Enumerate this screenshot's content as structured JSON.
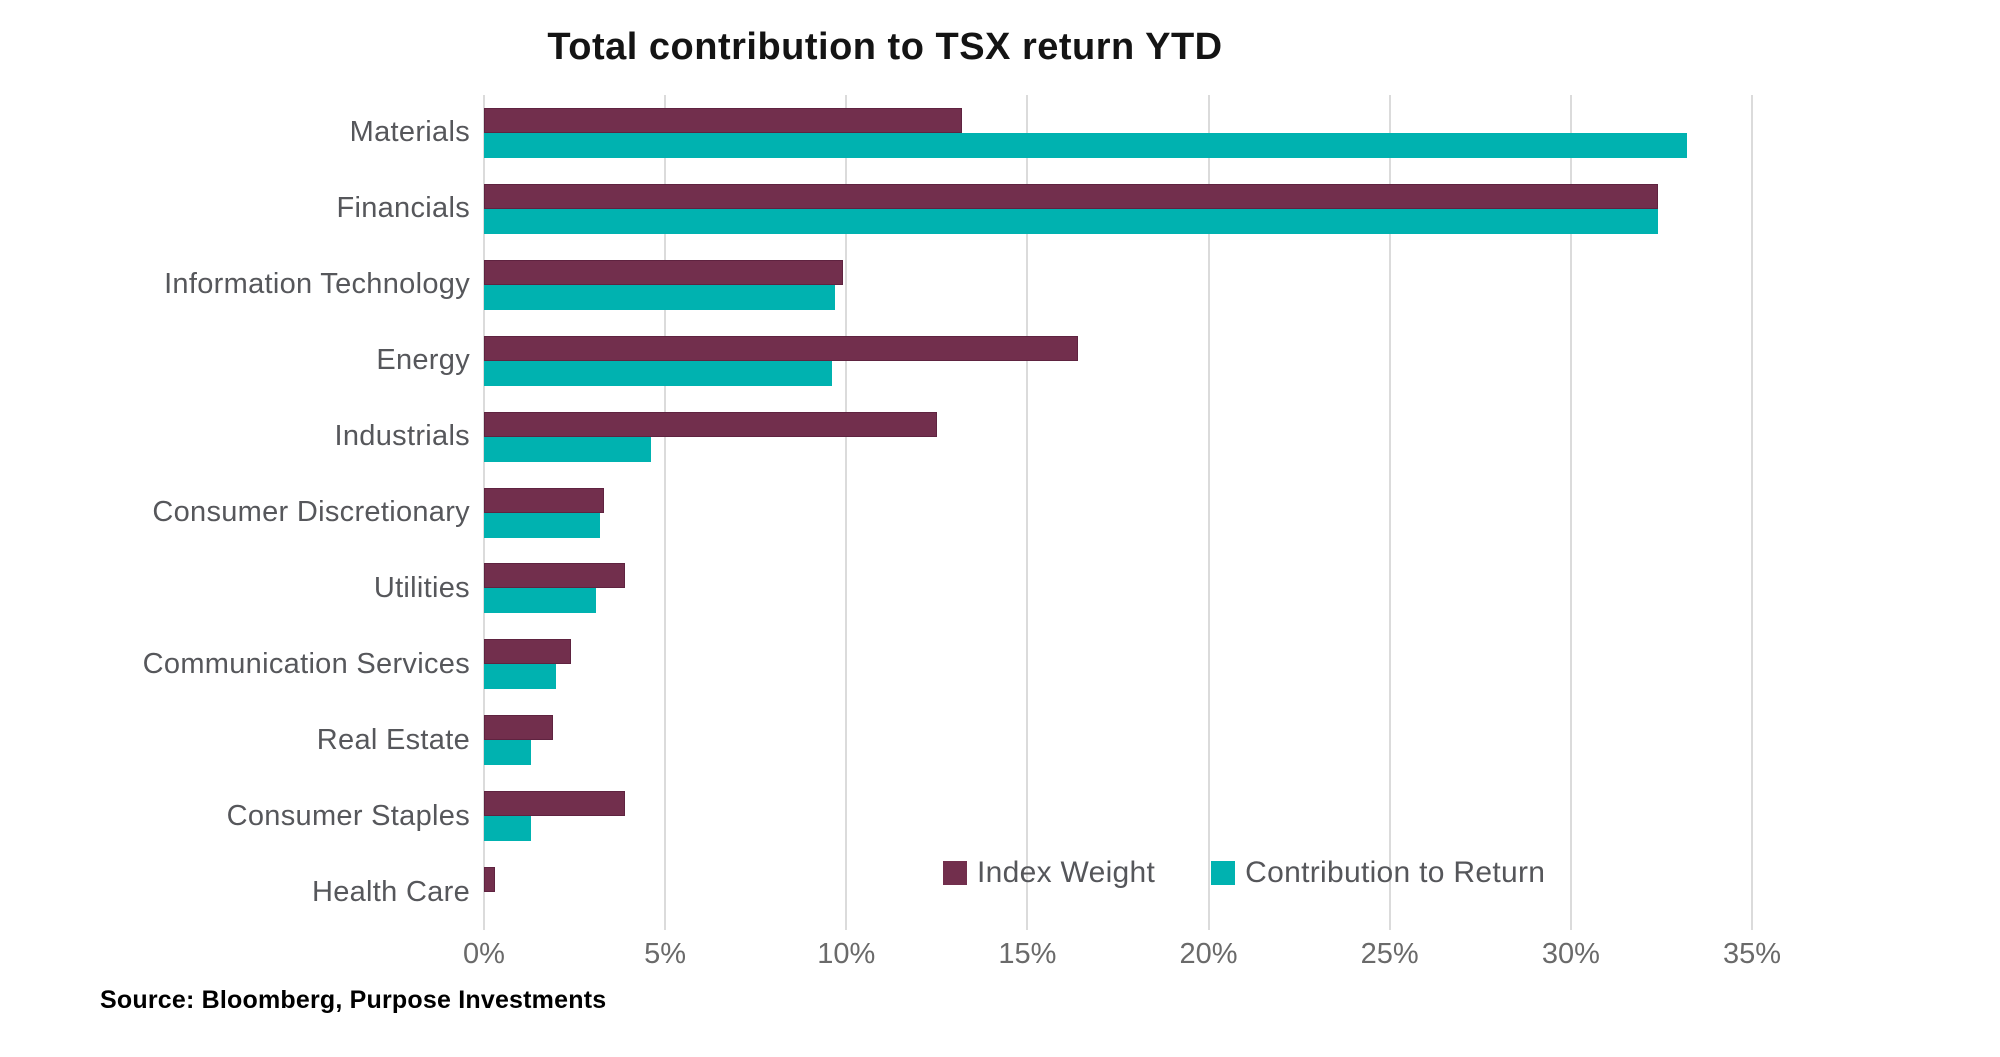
{
  "title": "Total contribution to TSX return YTD",
  "source": "Source: Bloomberg, Purpose Investments",
  "colors": {
    "index_weight": "#722f4d",
    "contribution_to_return": "#00b2b0",
    "gridline": "#dbdbdb",
    "category_label": "#56575b",
    "tick_label": "#6a6a6a",
    "title": "#141414"
  },
  "legend": {
    "items": [
      {
        "label": "Index Weight",
        "color": "#722f4d"
      },
      {
        "label": "Contribution to Return",
        "color": "#00b2b0"
      }
    ]
  },
  "chart_data": {
    "type": "bar",
    "orientation": "horizontal",
    "title": "Total contribution to TSX return YTD",
    "xlabel": "",
    "ylabel": "",
    "xlim": [
      0,
      35
    ],
    "x_tick_values": [
      0,
      5,
      10,
      15,
      20,
      25,
      30,
      35
    ],
    "x_tick_labels": [
      "0%",
      "5%",
      "10%",
      "15%",
      "20%",
      "25%",
      "30%",
      "35%"
    ],
    "grid": true,
    "legend_position": "inside-bottom-right",
    "unit": "percent",
    "categories": [
      "Materials",
      "Financials",
      "Information Technology",
      "Energy",
      "Industrials",
      "Consumer Discretionary",
      "Utilities",
      "Communication Services",
      "Real Estate",
      "Consumer Staples",
      "Health Care"
    ],
    "series": [
      {
        "name": "Index Weight",
        "color": "#722f4d",
        "values": [
          13.2,
          32.4,
          9.9,
          16.4,
          12.5,
          3.3,
          3.9,
          2.4,
          1.9,
          3.9,
          0.3
        ]
      },
      {
        "name": "Contribution to Return",
        "color": "#00b2b0",
        "values": [
          33.2,
          32.4,
          9.7,
          9.6,
          4.6,
          3.2,
          3.1,
          2.0,
          1.3,
          1.3,
          0.0
        ]
      }
    ]
  }
}
